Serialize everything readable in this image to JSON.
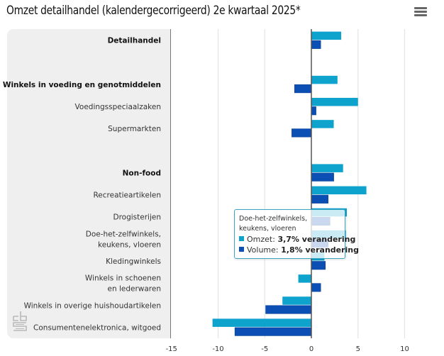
{
  "header": {
    "title": "Omzet detailhandel (kalendergecorrigeerd) 2e kwartaal 2025*",
    "menu_icon": "hamburger-menu-icon"
  },
  "logo": {
    "name": "cbs-logo"
  },
  "colors": {
    "omzet": "#0ea3cd",
    "volume": "#0b4fb5",
    "zero_line": "#555555",
    "grid": "#e4e4e4"
  },
  "tooltip": {
    "title_line1": "Doe-het-zelfwinkels,",
    "title_line2": "keukens, vloeren",
    "rows": [
      {
        "series": "Omzet:",
        "value": "3,7% verandering"
      },
      {
        "series": "Volume:",
        "value": "1,8% verandering"
      }
    ]
  },
  "chart_data": {
    "type": "bar",
    "orientation": "horizontal",
    "title": "Omzet detailhandel (kalendergecorrigeerd) 2e kwartaal 2025*",
    "xlabel": "",
    "ylabel": "",
    "xlim": [
      -15,
      13
    ],
    "x_ticks": [
      "-15",
      "-10",
      "-5",
      "0",
      "5",
      "10"
    ],
    "x_tick_values": [
      -15,
      -10,
      -5,
      0,
      5,
      10
    ],
    "grid": true,
    "legend": "none",
    "categories": [
      {
        "label": [
          "Detailhandel"
        ],
        "bold": true
      },
      {
        "label": [
          ""
        ],
        "bold": false,
        "blank": true
      },
      {
        "label": [
          "Winkels in voeding en genotmiddelen"
        ],
        "bold": true
      },
      {
        "label": [
          "Voedingsspeciaalzaken"
        ],
        "bold": false
      },
      {
        "label": [
          "Supermarkten"
        ],
        "bold": false
      },
      {
        "label": [
          ""
        ],
        "bold": false,
        "blank": true
      },
      {
        "label": [
          "Non-food"
        ],
        "bold": true
      },
      {
        "label": [
          "Recreatieartikelen"
        ],
        "bold": false
      },
      {
        "label": [
          "Drogisterijen"
        ],
        "bold": false
      },
      {
        "label": [
          "Doe-het-zelfwinkels,",
          "keukens, vloeren"
        ],
        "bold": false
      },
      {
        "label": [
          "Kledingwinkels"
        ],
        "bold": false
      },
      {
        "label": [
          "Winkels in schoenen",
          "en lederwaren"
        ],
        "bold": false
      },
      {
        "label": [
          "Winkels in overige huishoudartikelen"
        ],
        "bold": false
      },
      {
        "label": [
          "Consumentenelektronica, witgoed"
        ],
        "bold": false
      }
    ],
    "series": [
      {
        "name": "Omzet",
        "unit": "% verandering",
        "values": [
          3.2,
          null,
          2.8,
          5.0,
          2.4,
          null,
          3.4,
          5.9,
          3.8,
          3.7,
          1.4,
          -1.4,
          -3.1,
          -10.6
        ]
      },
      {
        "name": "Volume",
        "unit": "% verandering",
        "values": [
          1.0,
          null,
          -1.8,
          0.5,
          -2.1,
          null,
          2.4,
          1.8,
          2.0,
          1.8,
          1.5,
          1.0,
          -4.9,
          -8.2
        ]
      }
    ],
    "highlighted_category_index": 9
  }
}
